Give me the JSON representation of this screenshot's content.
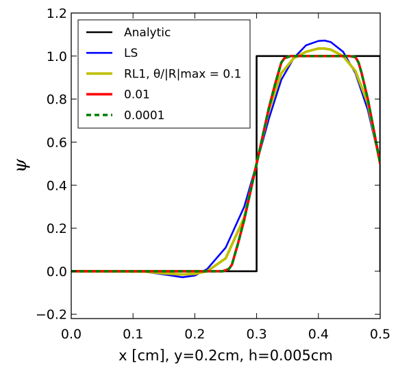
{
  "chart_data": {
    "type": "line",
    "title": "",
    "xlabel": "x [cm], y=0.2cm, h=0.005cm",
    "ylabel": "ψ",
    "xlim": [
      0.0,
      0.5
    ],
    "ylim": [
      -0.22,
      1.2
    ],
    "grid": false,
    "legend_position": "top-left",
    "x_ticks": [
      "0.0",
      "0.1",
      "0.2",
      "0.3",
      "0.4",
      "0.5"
    ],
    "y_ticks": [
      "−0.2",
      "0.0",
      "0.2",
      "0.4",
      "0.6",
      "0.8",
      "1.0",
      "1.2"
    ],
    "series": [
      {
        "name": "Analytic",
        "color": "#000000",
        "style": "solid",
        "x": [
          0.0,
          0.3,
          0.3,
          0.5,
          0.5
        ],
        "y": [
          0.0,
          0.0,
          1.0,
          1.0,
          0.0
        ]
      },
      {
        "name": "LS",
        "color": "#0000ff",
        "style": "solid",
        "x": [
          0.0,
          0.1,
          0.12,
          0.15,
          0.18,
          0.2,
          0.22,
          0.25,
          0.28,
          0.3,
          0.32,
          0.34,
          0.36,
          0.38,
          0.4,
          0.41,
          0.42,
          0.44,
          0.46,
          0.48,
          0.5
        ],
        "y": [
          0.0,
          0.0,
          -0.003,
          -0.015,
          -0.028,
          -0.02,
          0.01,
          0.11,
          0.3,
          0.5,
          0.71,
          0.89,
          0.99,
          1.05,
          1.07,
          1.072,
          1.065,
          1.02,
          0.92,
          0.75,
          0.5
        ]
      },
      {
        "name": "RL1, θ/|R|max = 0.1",
        "color": "#bfbf00",
        "style": "solid",
        "x": [
          0.0,
          0.12,
          0.15,
          0.18,
          0.2,
          0.22,
          0.25,
          0.28,
          0.3,
          0.32,
          0.34,
          0.36,
          0.38,
          0.4,
          0.41,
          0.42,
          0.44,
          0.46,
          0.48,
          0.5
        ],
        "y": [
          0.0,
          -0.002,
          -0.01,
          -0.015,
          -0.012,
          0.0,
          0.06,
          0.25,
          0.5,
          0.75,
          0.92,
          0.99,
          1.02,
          1.035,
          1.035,
          1.03,
          1.0,
          0.93,
          0.78,
          0.5
        ]
      },
      {
        "name": "0.01",
        "color": "#ff0000",
        "style": "solid",
        "x": [
          0.0,
          0.245,
          0.255,
          0.26,
          0.27,
          0.28,
          0.29,
          0.3,
          0.31,
          0.32,
          0.33,
          0.34,
          0.345,
          0.355,
          0.45,
          0.46,
          0.465,
          0.47,
          0.48,
          0.49,
          0.5
        ],
        "y": [
          0.0,
          0.0,
          0.01,
          0.03,
          0.13,
          0.24,
          0.37,
          0.5,
          0.63,
          0.76,
          0.87,
          0.97,
          0.99,
          1.0,
          1.0,
          0.995,
          0.97,
          0.92,
          0.8,
          0.65,
          0.5
        ]
      },
      {
        "name": "0.0001",
        "color": "#008000",
        "style": "dashed",
        "x": [
          0.0,
          0.245,
          0.255,
          0.26,
          0.27,
          0.28,
          0.29,
          0.3,
          0.31,
          0.32,
          0.33,
          0.34,
          0.345,
          0.355,
          0.45,
          0.46,
          0.465,
          0.47,
          0.48,
          0.49,
          0.5
        ],
        "y": [
          0.0,
          0.0,
          0.01,
          0.03,
          0.13,
          0.24,
          0.37,
          0.5,
          0.63,
          0.76,
          0.87,
          0.97,
          0.99,
          1.0,
          1.0,
          0.995,
          0.97,
          0.92,
          0.8,
          0.65,
          0.5
        ]
      }
    ]
  }
}
